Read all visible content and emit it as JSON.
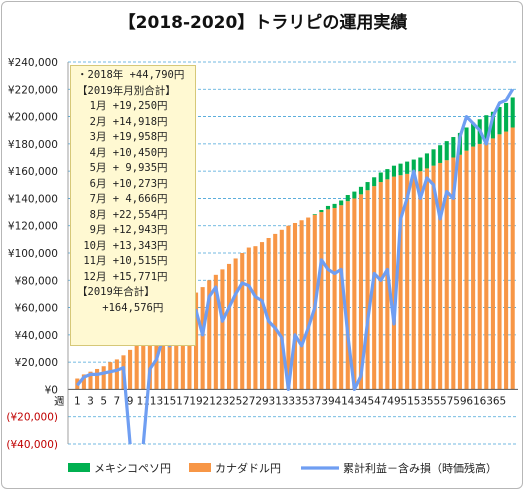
{
  "chart_data": {
    "type": "bar+line",
    "title": "【2018-2020】トラリピの運用実績",
    "ylim": [
      -40000,
      240000
    ],
    "y_ticks": [
      "¥240,000",
      "¥220,000",
      "¥200,000",
      "¥180,000",
      "¥160,000",
      "¥140,000",
      "¥120,000",
      "¥100,000",
      "¥80,000",
      "¥60,000",
      "¥40,000",
      "¥20,000",
      "¥0",
      "(¥20,000)",
      "(¥40,000)"
    ],
    "x_axis_label": "週",
    "x_tick_labels": [
      "1",
      "3",
      "5",
      "7",
      "9",
      "11",
      "13",
      "15",
      "17",
      "19",
      "21",
      "23",
      "25",
      "27",
      "29",
      "31",
      "33",
      "35",
      "37",
      "39",
      "41",
      "43",
      "45",
      "47",
      "49",
      "51",
      "53",
      "55",
      "57",
      "59",
      "61",
      "63",
      "65"
    ],
    "weeks": [
      1,
      2,
      3,
      4,
      5,
      6,
      7,
      8,
      9,
      10,
      11,
      12,
      13,
      14,
      15,
      16,
      17,
      18,
      19,
      20,
      21,
      22,
      23,
      24,
      25,
      26,
      27,
      28,
      29,
      30,
      31,
      32,
      33,
      34,
      35,
      36,
      37,
      38,
      39,
      40,
      41,
      42,
      43,
      44,
      45,
      46,
      47,
      48,
      49,
      50,
      51,
      52,
      53,
      54,
      55,
      56,
      57,
      58,
      59,
      60,
      61,
      62,
      63,
      64,
      65,
      66,
      67
    ],
    "series": [
      {
        "name": "カナダドル円",
        "type": "bar",
        "color": "#f79646",
        "values": [
          8000,
          11000,
          13000,
          15000,
          17000,
          20000,
          22000,
          25000,
          29000,
          33000,
          37000,
          42000,
          47000,
          51000,
          55000,
          59000,
          63000,
          67000,
          71000,
          75000,
          80000,
          84000,
          88000,
          92000,
          96000,
          100000,
          104000,
          105000,
          108000,
          111000,
          114000,
          117000,
          120000,
          122000,
          124000,
          126000,
          128000,
          130000,
          132000,
          133000,
          135000,
          138000,
          140000,
          143000,
          146000,
          149000,
          152000,
          154000,
          156000,
          157000,
          158000,
          159000,
          160000,
          162000,
          164000,
          166000,
          168000,
          170000,
          172000,
          175000,
          178000,
          180000,
          182000,
          184000,
          187000,
          189000,
          192000
        ]
      },
      {
        "name": "メキシコペソ円",
        "type": "bar",
        "color": "#00b050",
        "values": [
          0,
          0,
          0,
          0,
          0,
          0,
          0,
          0,
          0,
          0,
          0,
          0,
          0,
          0,
          0,
          0,
          0,
          0,
          0,
          0,
          0,
          0,
          0,
          0,
          0,
          0,
          0,
          0,
          0,
          0,
          0,
          0,
          0,
          0,
          0,
          0,
          500,
          1500,
          2500,
          3000,
          3500,
          4500,
          5000,
          5500,
          6000,
          6500,
          7000,
          7500,
          8000,
          8500,
          9000,
          9500,
          10000,
          11000,
          12000,
          13000,
          14000,
          15000,
          16000,
          17000,
          17500,
          18000,
          19000,
          19500,
          20000,
          21000,
          22000
        ]
      },
      {
        "name": "累計利益－含み損（時価残高）",
        "type": "line",
        "color": "#6f9ef2",
        "values": [
          3000,
          9000,
          11000,
          11000,
          12000,
          13000,
          14000,
          16000,
          -40000,
          -65000,
          -40000,
          15000,
          22000,
          38000,
          32000,
          50000,
          55000,
          47000,
          58000,
          40000,
          68000,
          75000,
          50000,
          60000,
          70000,
          78000,
          76000,
          68000,
          65000,
          50000,
          45000,
          38000,
          0,
          40000,
          32000,
          45000,
          60000,
          95000,
          88000,
          85000,
          88000,
          40000,
          0,
          10000,
          50000,
          85000,
          80000,
          88000,
          48000,
          125000,
          140000,
          160000,
          140000,
          155000,
          150000,
          125000,
          145000,
          140000,
          185000,
          200000,
          195000,
          190000,
          180000,
          200000,
          210000,
          212000,
          220000
        ]
      }
    ],
    "legend": [
      "メキシコペソ円",
      "カナダドル円",
      "累計利益－含み損（時価残高）"
    ],
    "legend_position": "bottom",
    "grid": true,
    "annotation": [
      "・2018年 +44,790円",
      "【2019年月別合計】",
      "  1月 +19,250円",
      "  2月 +14,918円",
      "  3月 +19,958円",
      "  4月 +10,450円",
      "  5月 + 9,935円",
      "  6月 +10,273円",
      "  7月 + 4,666円",
      "  8月 +22,554円",
      "  9月 +12,943円",
      " 10月 +13,343円",
      " 11月 +10,515円",
      " 12月 +15,771円",
      "【2019年合計】",
      "    +164,576円"
    ]
  }
}
